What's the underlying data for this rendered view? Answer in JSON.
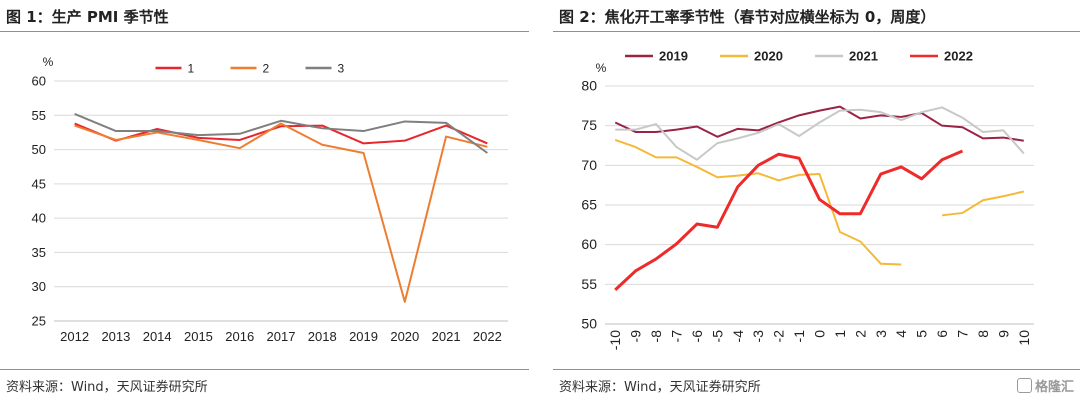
{
  "chart_data": [
    {
      "type": "line",
      "title": "图 1：生产 PMI 季节性",
      "source": "资料来源：Wind，天风证券研究所",
      "unit_label": "%",
      "categories": [
        "2012",
        "2013",
        "2014",
        "2015",
        "2016",
        "2017",
        "2018",
        "2019",
        "2020",
        "2021",
        "2022"
      ],
      "ylim": [
        25,
        60
      ],
      "yticks": [
        25,
        30,
        35,
        40,
        45,
        50,
        55,
        60
      ],
      "grid": true,
      "legend_position": "top",
      "series": [
        {
          "name": "1",
          "color": "#e8262d",
          "values": [
            53.8,
            51.3,
            53.0,
            51.7,
            51.4,
            53.4,
            53.5,
            50.9,
            51.3,
            53.5,
            50.9
          ]
        },
        {
          "name": "2",
          "color": "#ed7d31",
          "values": [
            53.5,
            51.4,
            52.5,
            51.4,
            50.2,
            53.8,
            50.7,
            49.5,
            27.8,
            51.9,
            50.4
          ]
        },
        {
          "name": "3",
          "color": "#7f7f7f",
          "values": [
            55.2,
            52.7,
            52.7,
            52.1,
            52.3,
            54.2,
            53.1,
            52.7,
            54.1,
            53.9,
            49.5
          ]
        }
      ]
    },
    {
      "type": "line",
      "title": "图 2：焦化开工率季节性（春节对应横坐标为 0，周度）",
      "source": "资料来源：Wind，天风证券研究所",
      "unit_label": "%",
      "categories": [
        "-10",
        "-9",
        "-8",
        "-7",
        "-6",
        "-5",
        "-4",
        "-3",
        "-2",
        "-1",
        "0",
        "1",
        "2",
        "3",
        "4",
        "5",
        "6",
        "7",
        "8",
        "9",
        "10"
      ],
      "ylim": [
        50,
        80
      ],
      "yticks": [
        50,
        55,
        60,
        65,
        70,
        75,
        80
      ],
      "grid": true,
      "legend_position": "top",
      "series": [
        {
          "name": "2019",
          "color": "#9b2345",
          "values": [
            75.4,
            74.2,
            74.2,
            74.5,
            74.9,
            73.6,
            74.6,
            74.4,
            75.4,
            76.3,
            76.9,
            77.4,
            75.9,
            76.3,
            76.1,
            76.6,
            75.0,
            74.8,
            73.4,
            73.5,
            73.1
          ]
        },
        {
          "name": "2020",
          "color": "#f5b93a",
          "values": [
            73.2,
            72.3,
            71.0,
            71.0,
            69.8,
            68.5,
            68.7,
            69.0,
            68.1,
            68.8,
            68.9,
            61.6,
            60.4,
            57.6,
            57.5,
            null,
            63.7,
            64.0,
            65.6,
            66.1,
            66.7
          ]
        },
        {
          "name": "2021",
          "color": "#c8c8c8",
          "values": [
            74.5,
            74.5,
            75.2,
            72.3,
            70.7,
            72.8,
            73.4,
            74.1,
            75.2,
            73.7,
            75.4,
            76.9,
            77.0,
            76.7,
            75.7,
            76.7,
            77.3,
            76.0,
            74.2,
            74.4,
            71.5
          ]
        },
        {
          "name": "2022",
          "color": "#ee2a2a",
          "values": [
            54.3,
            56.7,
            58.2,
            60.1,
            62.6,
            62.2,
            67.3,
            70.0,
            71.4,
            70.9,
            65.7,
            63.9,
            63.9,
            68.9,
            69.8,
            68.3,
            70.7,
            71.8,
            null,
            null,
            null
          ]
        }
      ]
    }
  ],
  "watermark": "格隆汇"
}
